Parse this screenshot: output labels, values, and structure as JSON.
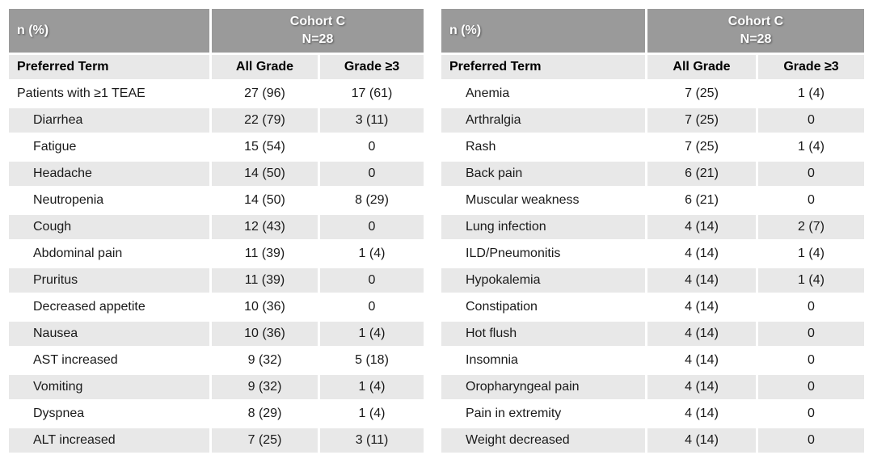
{
  "colors": {
    "header_bg": "#9a9a9a",
    "stripe_bg": "#e8e8e8",
    "header_text": "#ffffff",
    "body_text": "#1a1a1a",
    "right_table_bottom_border": "#4a4a4a"
  },
  "tables": [
    {
      "id": "teae-table-left",
      "header": {
        "corner": "n (%)",
        "cohort_line1": "Cohort C",
        "cohort_line2": "N=28"
      },
      "columns": [
        "Preferred Term",
        "All Grade",
        "Grade ≥3"
      ],
      "rows": [
        {
          "term": "Patients with ≥1 TEAE",
          "all_grade": "27 (96)",
          "grade3": "17 (61)",
          "indent": false
        },
        {
          "term": "Diarrhea",
          "all_grade": "22 (79)",
          "grade3": "3 (11)",
          "indent": true
        },
        {
          "term": "Fatigue",
          "all_grade": "15 (54)",
          "grade3": "0",
          "indent": true
        },
        {
          "term": "Headache",
          "all_grade": "14 (50)",
          "grade3": "0",
          "indent": true
        },
        {
          "term": "Neutropenia",
          "all_grade": "14 (50)",
          "grade3": "8 (29)",
          "indent": true
        },
        {
          "term": "Cough",
          "all_grade": "12 (43)",
          "grade3": "0",
          "indent": true
        },
        {
          "term": "Abdominal pain",
          "all_grade": "11 (39)",
          "grade3": "1 (4)",
          "indent": true
        },
        {
          "term": "Pruritus",
          "all_grade": "11 (39)",
          "grade3": "0",
          "indent": true
        },
        {
          "term": "Decreased appetite",
          "all_grade": "10 (36)",
          "grade3": "0",
          "indent": true
        },
        {
          "term": "Nausea",
          "all_grade": "10 (36)",
          "grade3": "1 (4)",
          "indent": true
        },
        {
          "term": "AST increased",
          "all_grade": "9 (32)",
          "grade3": "5 (18)",
          "indent": true
        },
        {
          "term": "Vomiting",
          "all_grade": "9 (32)",
          "grade3": "1 (4)",
          "indent": true
        },
        {
          "term": "Dyspnea",
          "all_grade": "8 (29)",
          "grade3": "1 (4)",
          "indent": true
        },
        {
          "term": "ALT increased",
          "all_grade": "7 (25)",
          "grade3": "3 (11)",
          "indent": true
        }
      ]
    },
    {
      "id": "teae-table-right",
      "header": {
        "corner": "n (%)",
        "cohort_line1": "Cohort C",
        "cohort_line2": "N=28"
      },
      "columns": [
        "Preferred Term",
        "All Grade",
        "Grade ≥3"
      ],
      "rows": [
        {
          "term": "Anemia",
          "all_grade": "7 (25)",
          "grade3": "1 (4)",
          "indent": true
        },
        {
          "term": "Arthralgia",
          "all_grade": "7 (25)",
          "grade3": "0",
          "indent": true
        },
        {
          "term": "Rash",
          "all_grade": "7 (25)",
          "grade3": "1 (4)",
          "indent": true
        },
        {
          "term": "Back pain",
          "all_grade": "6 (21)",
          "grade3": "0",
          "indent": true
        },
        {
          "term": "Muscular weakness",
          "all_grade": "6 (21)",
          "grade3": "0",
          "indent": true
        },
        {
          "term": "Lung infection",
          "all_grade": "4 (14)",
          "grade3": "2 (7)",
          "indent": true
        },
        {
          "term": "ILD/Pneumonitis",
          "all_grade": "4 (14)",
          "grade3": "1 (4)",
          "indent": true
        },
        {
          "term": "Hypokalemia",
          "all_grade": "4 (14)",
          "grade3": "1 (4)",
          "indent": true
        },
        {
          "term": "Constipation",
          "all_grade": "4 (14)",
          "grade3": "0",
          "indent": true
        },
        {
          "term": "Hot flush",
          "all_grade": "4 (14)",
          "grade3": "0",
          "indent": true
        },
        {
          "term": "Insomnia",
          "all_grade": "4 (14)",
          "grade3": "0",
          "indent": true
        },
        {
          "term": "Oropharyngeal pain",
          "all_grade": "4 (14)",
          "grade3": "0",
          "indent": true
        },
        {
          "term": "Pain in extremity",
          "all_grade": "4 (14)",
          "grade3": "0",
          "indent": true
        },
        {
          "term": "Weight decreased",
          "all_grade": "4 (14)",
          "grade3": "0",
          "indent": true
        }
      ]
    }
  ]
}
